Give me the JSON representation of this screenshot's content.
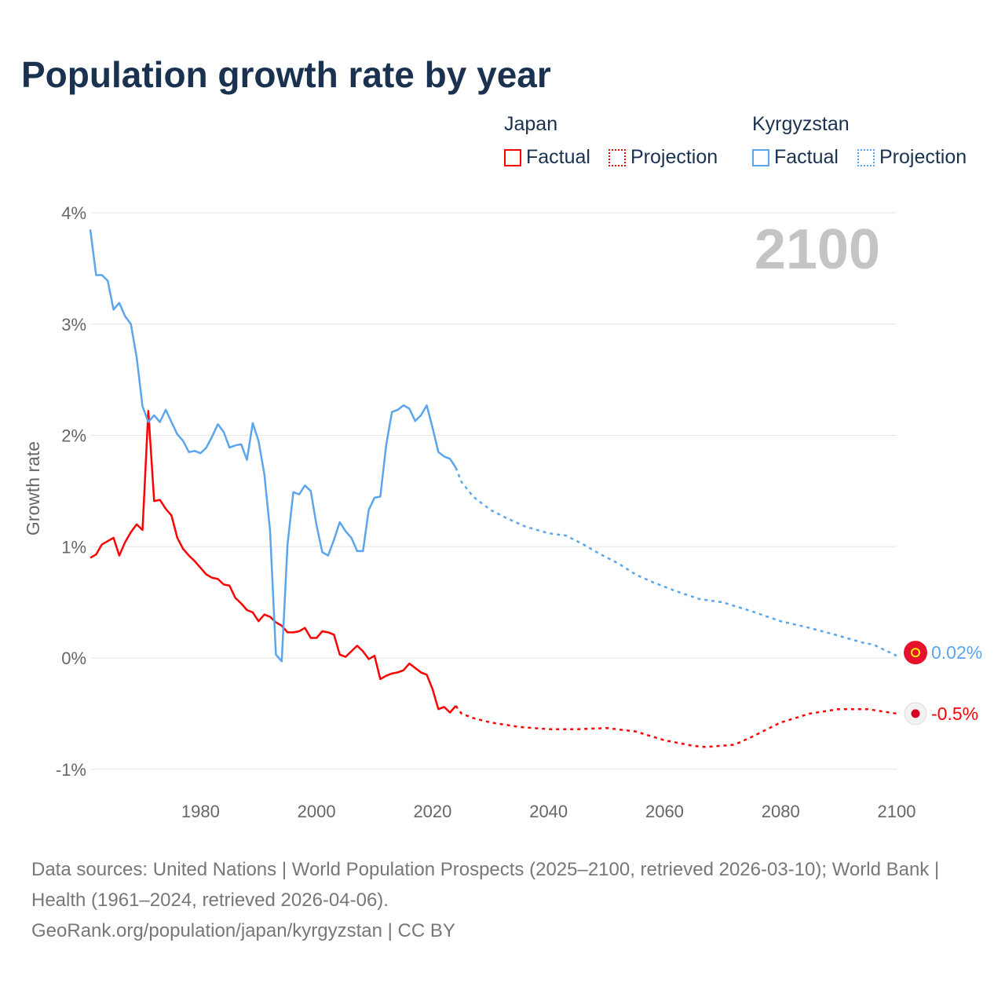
{
  "title": "Population growth rate by year",
  "legend": {
    "groups": [
      {
        "name": "Japan",
        "factual": "Factual",
        "projection": "Projection",
        "color": "#ff0000"
      },
      {
        "name": "Kyrgyzstan",
        "factual": "Factual",
        "projection": "Projection",
        "color": "#5aa5ec"
      }
    ]
  },
  "year_label": "2100",
  "footer": {
    "sources": "Data sources: United Nations | World Population Prospects (2025–2100, retrieved 2026-03-10); World Bank | Health (1961–2024, retrieved 2026-04-06).",
    "credit": "GeoRank.org/population/japan/kyrgyzstan | CC BY"
  },
  "chart_data": {
    "type": "line",
    "title": "Population growth rate by year",
    "xlabel": "",
    "ylabel": "Growth rate",
    "xlim": [
      1961,
      2100
    ],
    "ylim": [
      -1.2,
      4.0
    ],
    "x_ticks": [
      1980,
      2000,
      2020,
      2040,
      2060,
      2080,
      2100
    ],
    "x_tick_labels": [
      "1980",
      "2000",
      "2020",
      "2040",
      "2060",
      "2080",
      "2100"
    ],
    "y_ticks": [
      -1,
      0,
      1,
      2,
      3,
      4
    ],
    "y_tick_labels": [
      "-1%",
      "0%",
      "1%",
      "2%",
      "3%",
      "4%"
    ],
    "grid": true,
    "legend_position": "top-right",
    "series": [
      {
        "name": "Japan",
        "color": "#ff0000",
        "end_label": "-0.5%",
        "factual": {
          "x": [
            1961,
            1962,
            1963,
            1964,
            1965,
            1966,
            1967,
            1968,
            1969,
            1970,
            1971,
            1972,
            1973,
            1974,
            1975,
            1976,
            1977,
            1978,
            1979,
            1980,
            1981,
            1982,
            1983,
            1984,
            1985,
            1986,
            1987,
            1988,
            1989,
            1990,
            1991,
            1992,
            1993,
            1994,
            1995,
            1996,
            1997,
            1998,
            1999,
            2000,
            2001,
            2002,
            2003,
            2004,
            2005,
            2006,
            2007,
            2008,
            2009,
            2010,
            2011,
            2012,
            2013,
            2014,
            2015,
            2016,
            2017,
            2018,
            2019,
            2020,
            2021,
            2022,
            2023,
            2024
          ],
          "y": [
            0.9,
            0.93,
            1.02,
            1.05,
            1.08,
            0.92,
            1.04,
            1.13,
            1.2,
            1.15,
            2.22,
            1.41,
            1.42,
            1.34,
            1.28,
            1.08,
            0.98,
            0.92,
            0.87,
            0.81,
            0.75,
            0.72,
            0.71,
            0.66,
            0.65,
            0.54,
            0.49,
            0.43,
            0.41,
            0.33,
            0.39,
            0.37,
            0.32,
            0.29,
            0.23,
            0.23,
            0.24,
            0.27,
            0.18,
            0.18,
            0.24,
            0.23,
            0.21,
            0.03,
            0.01,
            0.06,
            0.11,
            0.06,
            -0.01,
            0.02,
            -0.19,
            -0.16,
            -0.14,
            -0.13,
            -0.11,
            -0.05,
            -0.09,
            -0.13,
            -0.15,
            -0.28,
            -0.46,
            -0.44,
            -0.49,
            -0.43
          ]
        },
        "projection": {
          "x": [
            2024,
            2025,
            2027,
            2030,
            2035,
            2040,
            2045,
            2050,
            2055,
            2060,
            2065,
            2067,
            2072,
            2075,
            2080,
            2085,
            2090,
            2095,
            2100
          ],
          "y": [
            -0.43,
            -0.5,
            -0.54,
            -0.58,
            -0.62,
            -0.64,
            -0.64,
            -0.63,
            -0.66,
            -0.74,
            -0.79,
            -0.8,
            -0.78,
            -0.71,
            -0.58,
            -0.5,
            -0.46,
            -0.46,
            -0.5
          ]
        }
      },
      {
        "name": "Kyrgyzstan",
        "color": "#5aa5ec",
        "end_label": "0.02%",
        "factual": {
          "x": [
            1961,
            1962,
            1963,
            1964,
            1965,
            1966,
            1967,
            1968,
            1969,
            1970,
            1971,
            1972,
            1973,
            1974,
            1975,
            1976,
            1977,
            1978,
            1979,
            1980,
            1981,
            1982,
            1983,
            1984,
            1985,
            1986,
            1987,
            1988,
            1989,
            1990,
            1991,
            1992,
            1993,
            1994,
            1995,
            1996,
            1997,
            1998,
            1999,
            2000,
            2001,
            2002,
            2003,
            2004,
            2005,
            2006,
            2007,
            2008,
            2009,
            2010,
            2011,
            2012,
            2013,
            2014,
            2015,
            2016,
            2017,
            2018,
            2019,
            2020,
            2021,
            2022,
            2023,
            2024
          ],
          "y": [
            3.85,
            3.44,
            3.44,
            3.39,
            3.13,
            3.19,
            3.07,
            3.0,
            2.7,
            2.26,
            2.12,
            2.18,
            2.12,
            2.23,
            2.12,
            2.01,
            1.95,
            1.85,
            1.86,
            1.84,
            1.89,
            1.99,
            2.1,
            2.03,
            1.89,
            1.91,
            1.92,
            1.78,
            2.11,
            1.95,
            1.65,
            1.14,
            0.03,
            -0.03,
            1.02,
            1.49,
            1.47,
            1.55,
            1.5,
            1.19,
            0.95,
            0.92,
            1.06,
            1.22,
            1.14,
            1.08,
            0.96,
            0.96,
            1.33,
            1.44,
            1.45,
            1.91,
            2.21,
            2.23,
            2.27,
            2.24,
            2.13,
            2.18,
            2.27,
            2.07,
            1.85,
            1.81,
            1.79,
            1.71
          ]
        },
        "projection": {
          "x": [
            2024,
            2025,
            2027,
            2030,
            2033,
            2036,
            2040,
            2043,
            2046,
            2049,
            2052,
            2055,
            2058,
            2062,
            2066,
            2070,
            2075,
            2080,
            2085,
            2090,
            2094,
            2096,
            2100
          ],
          "y": [
            1.71,
            1.58,
            1.45,
            1.33,
            1.25,
            1.18,
            1.12,
            1.1,
            1.02,
            0.93,
            0.85,
            0.75,
            0.68,
            0.6,
            0.53,
            0.5,
            0.42,
            0.33,
            0.27,
            0.2,
            0.14,
            0.12,
            0.02
          ]
        }
      }
    ]
  }
}
